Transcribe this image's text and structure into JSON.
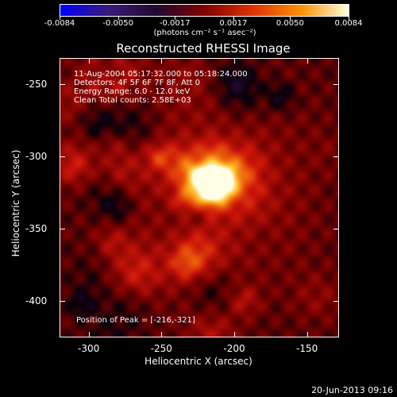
{
  "colorbar": {
    "ticks": [
      "-0.0084",
      "-0.0050",
      "-0.0017",
      "0.0017",
      "0.0050",
      "0.0084"
    ],
    "tick_values": [
      -0.0084,
      -0.005,
      -0.0017,
      0.0017,
      0.005,
      0.0084
    ],
    "units": "(photons cm⁻² s⁻¹ asec⁻²)",
    "colors": [
      "#0000ff",
      "#3a1a7a",
      "#200a30",
      "#800000",
      "#e03000",
      "#ff9000",
      "#ffffe0"
    ]
  },
  "chart_data": {
    "type": "heatmap",
    "title": "Reconstructed RHESSI Image",
    "xlabel": "Heliocentric X (arcsec)",
    "ylabel": "Heliocentric Y (arcsec)",
    "xlim": [
      -320,
      -128
    ],
    "ylim": [
      -425,
      -232
    ],
    "x_ticks": [
      "-300",
      "-250",
      "-200",
      "-150"
    ],
    "x_tick_values": [
      -300,
      -250,
      -200,
      -150
    ],
    "y_ticks": [
      "-250",
      "-300",
      "-350",
      "-400"
    ],
    "y_tick_values": [
      -250,
      -300,
      -350,
      -400
    ],
    "peak": {
      "x": -216,
      "y": -321
    },
    "annotations": [
      "11-Aug-2004 05:17:32.000 to 05:18:24.000",
      "Detectors: 4F 5F 6F 7F 8F, Att 0",
      "Energy Range: 6.0 - 12.0 keV",
      "Clean     Total counts: 2.58E+03"
    ],
    "peak_label": "Position of Peak = [-216,-321]"
  },
  "footer": {
    "timestamp": "20-Jun-2013 09:16"
  }
}
